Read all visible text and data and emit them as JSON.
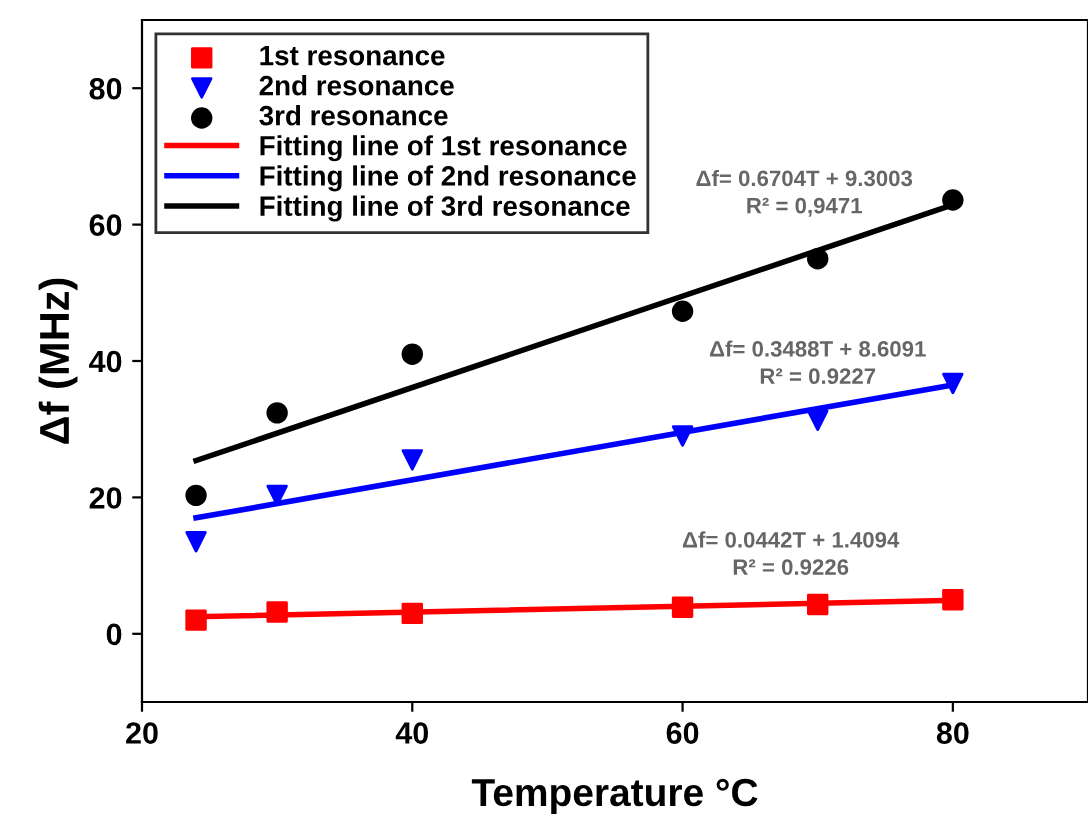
{
  "chart_data": {
    "type": "scatter",
    "xlabel": "Temperature °C",
    "ylabel": "Δf (MHz)",
    "xlim": [
      20,
      90
    ],
    "ylim": [
      -10,
      90
    ],
    "xticks": [
      20,
      40,
      60,
      80
    ],
    "yticks": [
      0,
      20,
      40,
      60,
      80
    ],
    "grid": false,
    "legend": "top left",
    "series": [
      {
        "name": "1st resonance",
        "color": "#ff0000",
        "marker": "square",
        "x": [
          24,
          30,
          40,
          60,
          70,
          80
        ],
        "values": [
          2.0,
          3.2,
          3.0,
          3.9,
          4.3,
          5.0
        ]
      },
      {
        "name": "2nd resonance",
        "color": "#0000ff",
        "marker": "triangle",
        "x": [
          24,
          30,
          40,
          60,
          70,
          80
        ],
        "values": [
          13.5,
          20.3,
          25.5,
          29.0,
          31.3,
          36.7
        ]
      },
      {
        "name": "3rd resonance",
        "color": "#000000",
        "marker": "circle",
        "x": [
          24,
          30,
          40,
          60,
          70,
          80
        ],
        "values": [
          20.3,
          32.4,
          41.0,
          47.3,
          55.0,
          63.6
        ]
      },
      {
        "name": "Fitting line of 1st resonance",
        "type": "line",
        "color": "#ff0000",
        "marker": "none",
        "x": [
          24,
          80
        ],
        "values": [
          2.5,
          4.9
        ]
      },
      {
        "name": "Fitting line of 2nd resonance",
        "type": "line",
        "color": "#0000ff",
        "marker": "none",
        "x": [
          24,
          80
        ],
        "values": [
          17.0,
          36.5
        ]
      },
      {
        "name": "Fitting line of 3rd resonance",
        "type": "line",
        "color": "#000000",
        "marker": "none",
        "x": [
          24,
          80
        ],
        "values": [
          25.4,
          62.9
        ]
      }
    ],
    "annotations": [
      "Δf= 0.6704T + 9.3003",
      "R² = 0,9471",
      "Δf= 0.3488T + 8.6091",
      "R² = 0.9227",
      "Δf= 0.0442T + 1.4094",
      "R² = 0.9226"
    ]
  }
}
